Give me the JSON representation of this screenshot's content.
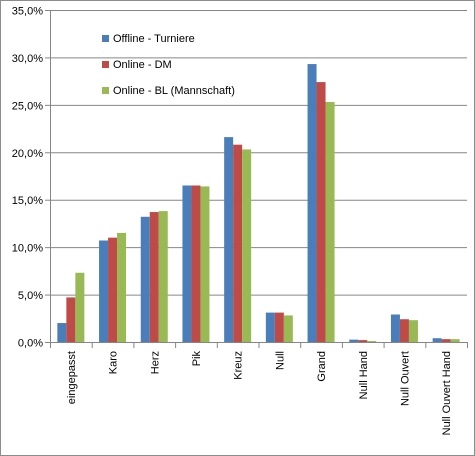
{
  "chart_data": {
    "type": "bar",
    "categories": [
      "eingepasst",
      "Karo",
      "Herz",
      "Pik",
      "Kreuz",
      "Null",
      "Grand",
      "Null Hand",
      "Null Ouvert",
      "Null Ouvert Hand"
    ],
    "series": [
      {
        "name": "Offline - Turniere",
        "color": "#4a7ebb",
        "values": [
          2.0,
          10.7,
          13.2,
          16.5,
          21.6,
          3.1,
          29.3,
          0.25,
          2.9,
          0.4
        ]
      },
      {
        "name": "Online - DM",
        "color": "#be4b48",
        "values": [
          4.7,
          11.0,
          13.7,
          16.5,
          20.8,
          3.1,
          27.4,
          0.2,
          2.4,
          0.3
        ]
      },
      {
        "name": "Online - BL (Mannschaft)",
        "color": "#98b954",
        "values": [
          7.3,
          11.5,
          13.8,
          16.4,
          20.3,
          2.8,
          25.3,
          0.1,
          2.3,
          0.3
        ]
      }
    ],
    "ylim": [
      0,
      35
    ],
    "yticks": [
      0,
      5,
      10,
      15,
      20,
      25,
      30,
      35
    ],
    "ytick_labels": [
      "0,0%",
      "5,0%",
      "10,0%",
      "15,0%",
      "20,0%",
      "25,0%",
      "30,0%",
      "35,0%"
    ],
    "gridlines": true,
    "legend_position": "top-left",
    "title": "",
    "xlabel": "",
    "ylabel": ""
  }
}
